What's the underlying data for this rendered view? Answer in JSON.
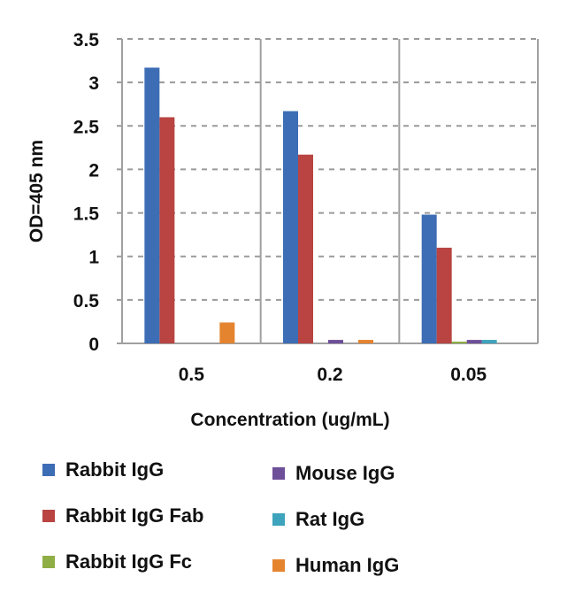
{
  "chart_data": {
    "type": "bar",
    "title": "",
    "xlabel": "Concentration (ug/mL)",
    "ylabel": "OD=405 nm",
    "ylim": [
      0,
      3.5
    ],
    "yticks": [
      "0",
      "0.5",
      "1",
      "1.5",
      "2",
      "2.5",
      "3",
      "3.5"
    ],
    "ytick_values": [
      0,
      0.5,
      1,
      1.5,
      2,
      2.5,
      3,
      3.5
    ],
    "grid": "horizontal dashed",
    "legend_position": "bottom",
    "categories": [
      "0.5",
      "0.2",
      "0.05"
    ],
    "series": [
      {
        "name": "Rabbit IgG",
        "color": "#3d6db5",
        "values": [
          3.17,
          2.67,
          1.48
        ]
      },
      {
        "name": "Rabbit IgG Fab",
        "color": "#b94441",
        "values": [
          2.6,
          2.17,
          1.1
        ]
      },
      {
        "name": "Rabbit IgG Fc",
        "color": "#8fae45",
        "values": [
          0.0,
          0.0,
          0.02
        ]
      },
      {
        "name": "Mouse IgG",
        "color": "#6e4f9a",
        "values": [
          0.0,
          0.04,
          0.04
        ]
      },
      {
        "name": "Rat IgG",
        "color": "#3ea3bd",
        "values": [
          0.0,
          0.0,
          0.04
        ]
      },
      {
        "name": "Human IgG",
        "color": "#e5842f",
        "values": [
          0.24,
          0.04,
          0.0
        ]
      }
    ]
  }
}
